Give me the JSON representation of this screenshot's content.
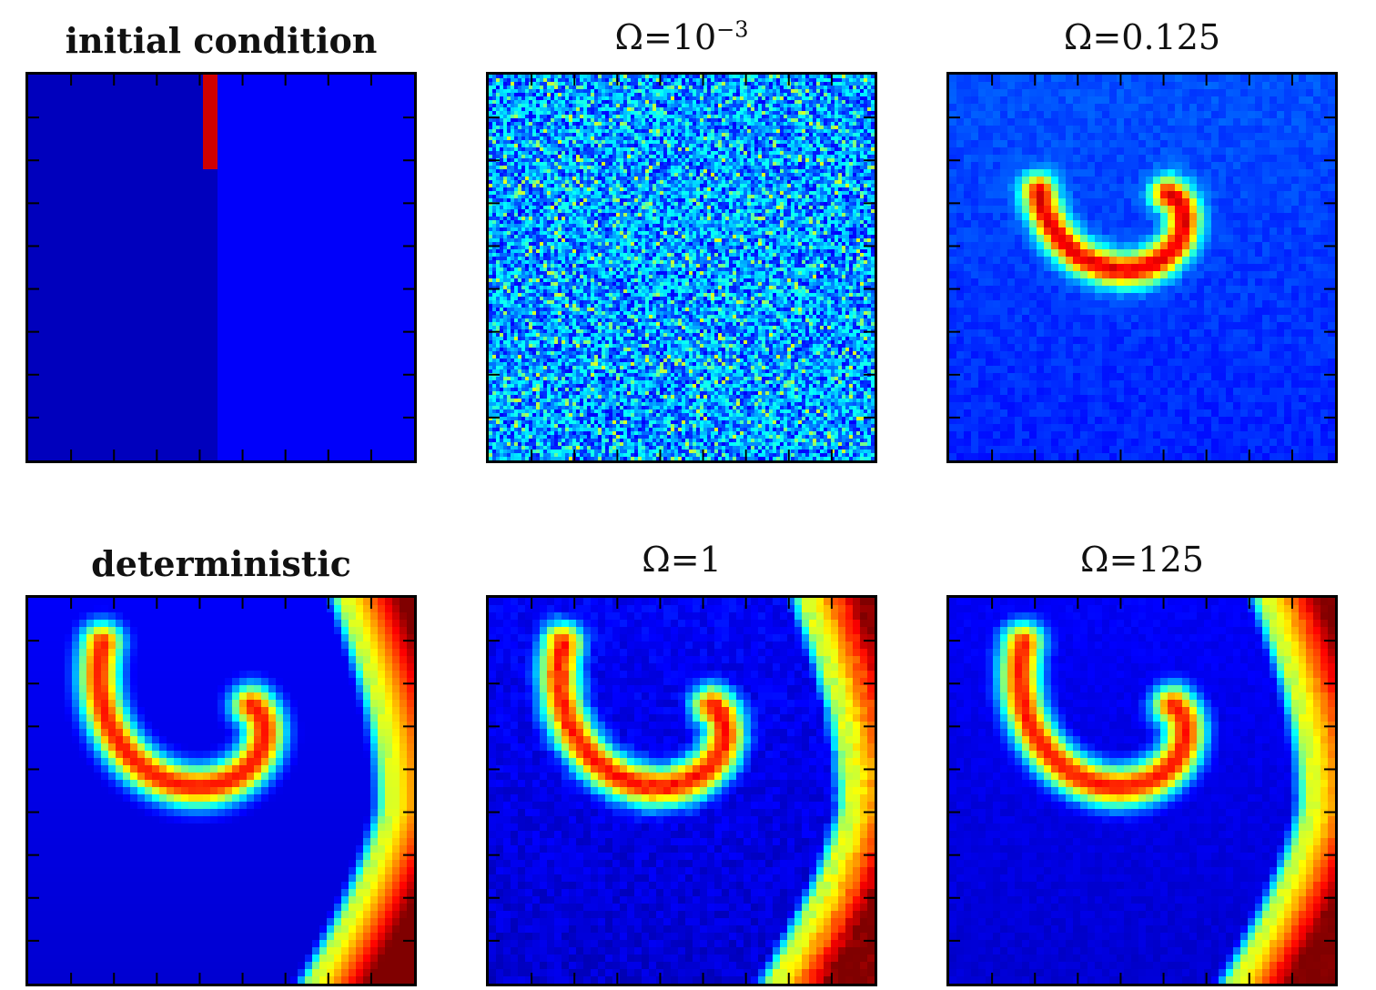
{
  "chart_data": [
    {
      "type": "heatmap",
      "panel": "initial-condition",
      "title": "initial condition",
      "title_bold": true,
      "field": "step",
      "colormap": "jet"
    },
    {
      "type": "heatmap",
      "panel": "omega-1e-3",
      "title_parts": {
        "symbol": "Ω",
        "op": "=",
        "base": "10",
        "exponent": "−3"
      },
      "field": "noise",
      "colormap": "jet"
    },
    {
      "type": "heatmap",
      "panel": "omega-0.125",
      "title_parts": {
        "symbol": "Ω",
        "op": "=",
        "base": "0.125",
        "exponent": ""
      },
      "field": "single-spiral",
      "colormap": "jet"
    },
    {
      "type": "heatmap",
      "panel": "deterministic",
      "title": "deterministic",
      "title_bold": true,
      "field": "spiral",
      "colormap": "jet"
    },
    {
      "type": "heatmap",
      "panel": "omega-1",
      "title_parts": {
        "symbol": "Ω",
        "op": "=",
        "base": "1",
        "exponent": ""
      },
      "field": "spiral-noisy",
      "colormap": "jet"
    },
    {
      "type": "heatmap",
      "panel": "omega-125",
      "title_parts": {
        "symbol": "Ω",
        "op": "=",
        "base": "125",
        "exponent": ""
      },
      "field": "spiral-slightly-noisy",
      "colormap": "jet"
    }
  ]
}
